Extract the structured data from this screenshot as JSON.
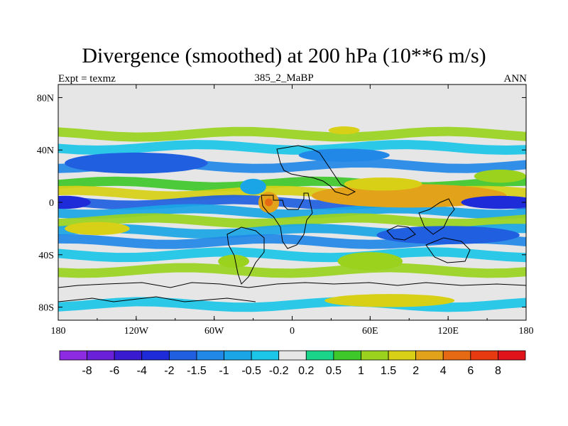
{
  "chart_data": {
    "type": "heatmap",
    "title": "Divergence (smoothed) at 200 hPa (10**6 m/s)",
    "subtitle": "385_2_MaBP",
    "left_label": "Expt = texmz",
    "right_label": "ANN",
    "x_ticks": [
      "180",
      "120W",
      "60W",
      "0",
      "60E",
      "120E",
      "180"
    ],
    "y_ticks": [
      "80N",
      "40N",
      "0",
      "40S",
      "80S"
    ],
    "xlim": [
      -180,
      180
    ],
    "ylim": [
      -90,
      90
    ],
    "colorbar_levels": [
      "-8",
      "-6",
      "-4",
      "-2",
      "-1.5",
      "-1",
      "-0.5",
      "-0.2",
      "0.2",
      "0.5",
      "1",
      "1.5",
      "2",
      "4",
      "6",
      "8"
    ],
    "colorbar_colors": [
      "#8c2be2",
      "#6a1fd8",
      "#3a1ad0",
      "#1e2bd8",
      "#1f5fe0",
      "#2288e8",
      "#1aa6e6",
      "#1cc6e8",
      "#e6e6e6",
      "#1ad48a",
      "#3fc82a",
      "#9ad21e",
      "#d8d016",
      "#e2a21a",
      "#e66a14",
      "#e83a10",
      "#e0121a"
    ],
    "bands": [
      {
        "lat": 52,
        "value": 1
      },
      {
        "lat": 42,
        "value": -0.5
      },
      {
        "lat": 28,
        "value": -1.5
      },
      {
        "lat": 14,
        "value": 0.5
      },
      {
        "lat": 7,
        "value": 1.5
      },
      {
        "lat": 0,
        "value": -2
      },
      {
        "lat": -7,
        "value": -1
      },
      {
        "lat": -14,
        "value": 1
      },
      {
        "lat": -22,
        "value": -1
      },
      {
        "lat": -30,
        "value": -1.5
      },
      {
        "lat": -40,
        "value": -0.5
      },
      {
        "lat": -52,
        "value": 1
      },
      {
        "lat": -78,
        "value": -0.5
      }
    ],
    "features": [
      {
        "lon": 90,
        "lat": 5,
        "rlon": 75,
        "rlat": 9,
        "value": 2
      },
      {
        "lon": 70,
        "lat": 14,
        "rlon": 30,
        "rlat": 5,
        "value": 1.5
      },
      {
        "lon": -18,
        "lat": 0,
        "rlon": 8,
        "rlat": 8,
        "value": 2
      },
      {
        "lon": -18,
        "lat": 0,
        "rlon": 3,
        "rlat": 3,
        "value": 4
      },
      {
        "lon": -30,
        "lat": 12,
        "rlon": 10,
        "rlat": 6,
        "value": -1
      },
      {
        "lon": -120,
        "lat": 30,
        "rlon": 55,
        "rlat": 8,
        "value": -2
      },
      {
        "lon": 40,
        "lat": 36,
        "rlon": 35,
        "rlat": 5,
        "value": -1.5
      },
      {
        "lon": 40,
        "lat": 55,
        "rlon": 12,
        "rlat": 3,
        "value": 1.5
      },
      {
        "lon": 160,
        "lat": 0,
        "rlon": 30,
        "rlat": 5,
        "value": -2.5
      },
      {
        "lon": -175,
        "lat": 0,
        "rlon": 20,
        "rlat": 5,
        "value": -3
      },
      {
        "lon": 120,
        "lat": -25,
        "rlon": 55,
        "rlat": 7,
        "value": -2
      },
      {
        "lon": 60,
        "lat": -45,
        "rlon": 25,
        "rlat": 7,
        "value": 1
      },
      {
        "lon": -45,
        "lat": -45,
        "rlon": 12,
        "rlat": 5,
        "value": 1
      },
      {
        "lon": 75,
        "lat": -75,
        "rlon": 50,
        "rlat": 5,
        "value": 1.5
      },
      {
        "lon": 160,
        "lat": 20,
        "rlon": 20,
        "rlat": 5,
        "value": 1
      },
      {
        "lon": -150,
        "lat": -20,
        "rlon": 25,
        "rlat": 5,
        "value": 1.5
      }
    ]
  }
}
